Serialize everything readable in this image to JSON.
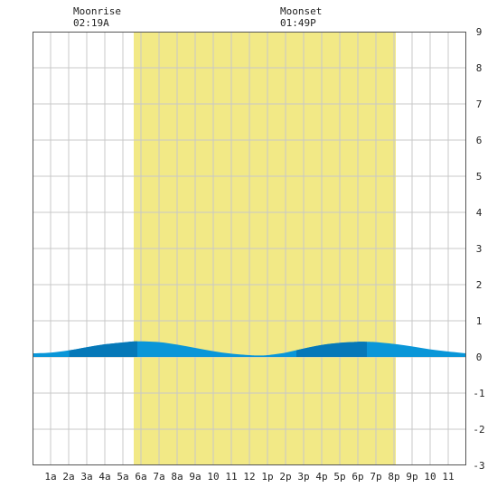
{
  "moon": {
    "rise_label": "Moonrise",
    "rise_time": "02:19A",
    "set_label": "Moonset",
    "set_time": "01:49P"
  },
  "chart_data": {
    "type": "area",
    "title": "",
    "xlabel": "",
    "ylabel": "",
    "xlim": [
      0,
      24
    ],
    "ylim": [
      -3,
      9
    ],
    "y_ticks": [
      9,
      8,
      7,
      6,
      5,
      4,
      3,
      2,
      1,
      0,
      -1,
      -2,
      -3
    ],
    "x_ticks": [
      {
        "t": 1,
        "label": "1a"
      },
      {
        "t": 2,
        "label": "2a"
      },
      {
        "t": 3,
        "label": "3a"
      },
      {
        "t": 4,
        "label": "4a"
      },
      {
        "t": 5,
        "label": "5a"
      },
      {
        "t": 6,
        "label": "6a"
      },
      {
        "t": 7,
        "label": "7a"
      },
      {
        "t": 8,
        "label": "8a"
      },
      {
        "t": 9,
        "label": "9a"
      },
      {
        "t": 10,
        "label": "10"
      },
      {
        "t": 11,
        "label": "11"
      },
      {
        "t": 12,
        "label": "12"
      },
      {
        "t": 13,
        "label": "1p"
      },
      {
        "t": 14,
        "label": "2p"
      },
      {
        "t": 15,
        "label": "3p"
      },
      {
        "t": 16,
        "label": "4p"
      },
      {
        "t": 17,
        "label": "5p"
      },
      {
        "t": 18,
        "label": "6p"
      },
      {
        "t": 19,
        "label": "7p"
      },
      {
        "t": 20,
        "label": "8p"
      },
      {
        "t": 21,
        "label": "9p"
      },
      {
        "t": 22,
        "label": "10"
      },
      {
        "t": 23,
        "label": "11"
      }
    ],
    "daylight": {
      "start": 5.6,
      "end": 20.1
    },
    "tide": {
      "x": [
        0,
        1,
        2,
        3,
        4,
        5,
        5.8,
        7,
        8,
        9,
        10,
        11,
        12,
        12.5,
        13,
        14,
        15,
        16,
        17,
        18,
        18.5,
        19,
        20,
        21,
        22,
        23,
        24
      ],
      "y": [
        0.1,
        0.12,
        0.18,
        0.27,
        0.35,
        0.4,
        0.43,
        0.41,
        0.34,
        0.25,
        0.16,
        0.09,
        0.05,
        0.04,
        0.05,
        0.12,
        0.23,
        0.33,
        0.39,
        0.42,
        0.42,
        0.41,
        0.36,
        0.29,
        0.21,
        0.15,
        0.1
      ]
    },
    "colors": {
      "daylight": "#f2e986",
      "tide": "#0a96d8",
      "tide_dark": "#0678b8",
      "grid": "#c8c8c8",
      "frame": "#555555"
    }
  }
}
